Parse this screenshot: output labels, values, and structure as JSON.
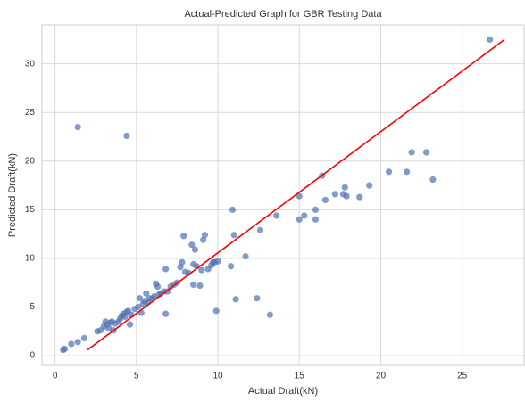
{
  "chart_data": {
    "type": "scatter",
    "title": "Actual-Predicted Graph for GBR Testing Data",
    "x_label": "Actual Draft(kN)",
    "y_label": "Predicted Draft(kN)",
    "xlim": [
      -0.8,
      28.8
    ],
    "ylim": [
      -1,
      34
    ],
    "xticks": [
      0,
      5,
      10,
      15,
      20,
      25
    ],
    "yticks": [
      0,
      5,
      10,
      15,
      20,
      25,
      30
    ],
    "grid": true,
    "series": [
      {
        "type": "scatter",
        "color": "#4c72b0",
        "x": [
          0.5,
          0.6,
          1,
          1.4,
          1.8,
          2.6,
          2.8,
          3,
          3.1,
          3.2,
          3.3,
          3.4,
          3.5,
          3.6,
          3.7,
          3.9,
          4.0,
          4.1,
          4.2,
          4.3,
          4.4,
          4.5,
          4.6,
          4.7,
          4.9,
          5.1,
          5.2,
          5.3,
          5.4,
          5.5,
          5.6,
          5.7,
          5.8,
          6,
          6.1,
          6.2,
          6.3,
          6.4,
          6.5,
          6.7,
          6.8,
          6.8,
          6.9,
          7.1,
          7.3,
          7.5,
          7.7,
          7.8,
          7.9,
          8,
          8.2,
          8.4,
          8.5,
          8.5,
          8.6,
          8.7,
          8.9,
          9,
          9.1,
          9.2,
          9.4,
          9.6,
          9.7,
          9.8,
          9.9,
          10,
          10.8,
          10.9,
          11,
          11.1,
          11.7,
          12.4,
          12.6,
          13.2,
          13.6,
          15,
          15,
          15.3,
          16,
          16,
          16.4,
          16.6,
          17.2,
          17.7,
          17.8,
          17.9,
          18.7,
          19.3,
          20.5,
          21.6,
          21.9,
          22.8,
          23.2,
          26.7,
          1.4,
          4.4
        ],
        "y": [
          0.6,
          0.7,
          1.2,
          1.4,
          1.8,
          2.5,
          2.6,
          3,
          3.5,
          3.2,
          2.8,
          3.4,
          3.5,
          2.6,
          3.3,
          3.5,
          3.8,
          4.1,
          4.3,
          4.0,
          4.5,
          4.6,
          3.2,
          4.2,
          4.8,
          5.0,
          5.9,
          4.4,
          5.3,
          5.6,
          6.4,
          5.5,
          5.9,
          5.9,
          6.1,
          7.4,
          7.1,
          6.3,
          6.4,
          6.6,
          8.9,
          4.3,
          6.6,
          7.1,
          7.3,
          7.5,
          9.1,
          9.6,
          12.3,
          8.6,
          8.5,
          11.4,
          7.3,
          9.4,
          10.9,
          9.2,
          7.2,
          8.8,
          11.9,
          12.4,
          8.9,
          9.3,
          9.6,
          9.6,
          4.6,
          9.7,
          9.2,
          15,
          12.4,
          5.8,
          10.2,
          5.9,
          12.9,
          4.2,
          14.4,
          16.4,
          14,
          14.4,
          14,
          15,
          18.5,
          16,
          16.6,
          16.6,
          17.3,
          16.4,
          16.3,
          17.5,
          18.9,
          18.9,
          20.9,
          20.9,
          18.1,
          32.5,
          23.5,
          22.6
        ]
      },
      {
        "type": "line",
        "color": "#ff0000",
        "x": [
          2,
          27.6
        ],
        "y": [
          0.6,
          32.5
        ]
      }
    ]
  }
}
